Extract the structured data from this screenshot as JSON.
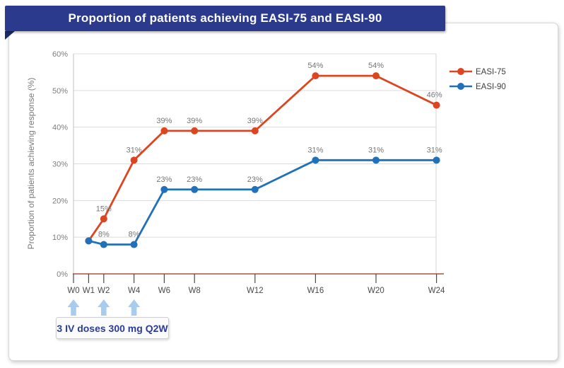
{
  "banner": {
    "title": "Proportion of patients achieving EASI-75 and EASI-90"
  },
  "chart_data": {
    "type": "line",
    "title": "Proportion of patients achieving EASI-75 and EASI-90",
    "ylabel": "Proportion of patients achieving response (%)",
    "ylim": [
      0,
      60
    ],
    "y_tick_labels": [
      "0%",
      "10%",
      "20%",
      "30%",
      "40%",
      "50%",
      "60%"
    ],
    "x_unit": "weeks",
    "x_ticks": [
      {
        "week": 0,
        "label": "W0"
      },
      {
        "week": 1,
        "label": "W1"
      },
      {
        "week": 2,
        "label": "W2"
      },
      {
        "week": 4,
        "label": "W4"
      },
      {
        "week": 6,
        "label": "W6"
      },
      {
        "week": 8,
        "label": "W8"
      },
      {
        "week": 12,
        "label": "W12"
      },
      {
        "week": 16,
        "label": "W16"
      },
      {
        "week": 20,
        "label": "W20"
      },
      {
        "week": 24,
        "label": "W24"
      }
    ],
    "grid": true,
    "legend_position": "right",
    "series": [
      {
        "name": "EASI-75",
        "color": "#dd4520",
        "points": [
          {
            "week": 1,
            "value": 9,
            "label": ""
          },
          {
            "week": 2,
            "value": 15,
            "label": "15%"
          },
          {
            "week": 4,
            "value": 31,
            "label": "31%"
          },
          {
            "week": 6,
            "value": 39,
            "label": "39%"
          },
          {
            "week": 8,
            "value": 39,
            "label": "39%"
          },
          {
            "week": 12,
            "value": 39,
            "label": "39%"
          },
          {
            "week": 16,
            "value": 54,
            "label": "54%"
          },
          {
            "week": 20,
            "value": 54,
            "label": "54%"
          },
          {
            "week": 24,
            "value": 46,
            "label": "46%"
          }
        ]
      },
      {
        "name": "EASI-90",
        "color": "#2071b9",
        "points": [
          {
            "week": 1,
            "value": 9,
            "label": ""
          },
          {
            "week": 2,
            "value": 8,
            "label": "8%"
          },
          {
            "week": 4,
            "value": 8,
            "label": "8%"
          },
          {
            "week": 6,
            "value": 23,
            "label": "23%"
          },
          {
            "week": 8,
            "value": 23,
            "label": "23%"
          },
          {
            "week": 12,
            "value": 23,
            "label": "23%"
          },
          {
            "week": 16,
            "value": 31,
            "label": "31%"
          },
          {
            "week": 20,
            "value": 31,
            "label": "31%"
          },
          {
            "week": 24,
            "value": 31,
            "label": "31%"
          }
        ]
      }
    ],
    "annotations": {
      "dose_label": "3 IV doses 300 mg Q2W",
      "dose_arrow_weeks": [
        0,
        2,
        4
      ]
    }
  },
  "colors": {
    "banner_bg": "#2b3a8c",
    "banner_fold": "#1b2a69",
    "easi75": "#dd4520",
    "easi90": "#2071b9",
    "x_axis_line": "#a9523f",
    "gridline": "#dcdcdc",
    "arrow_blue": "#a7cced",
    "dose_text": "#2a3c96",
    "data_label_gray": "#767676"
  }
}
